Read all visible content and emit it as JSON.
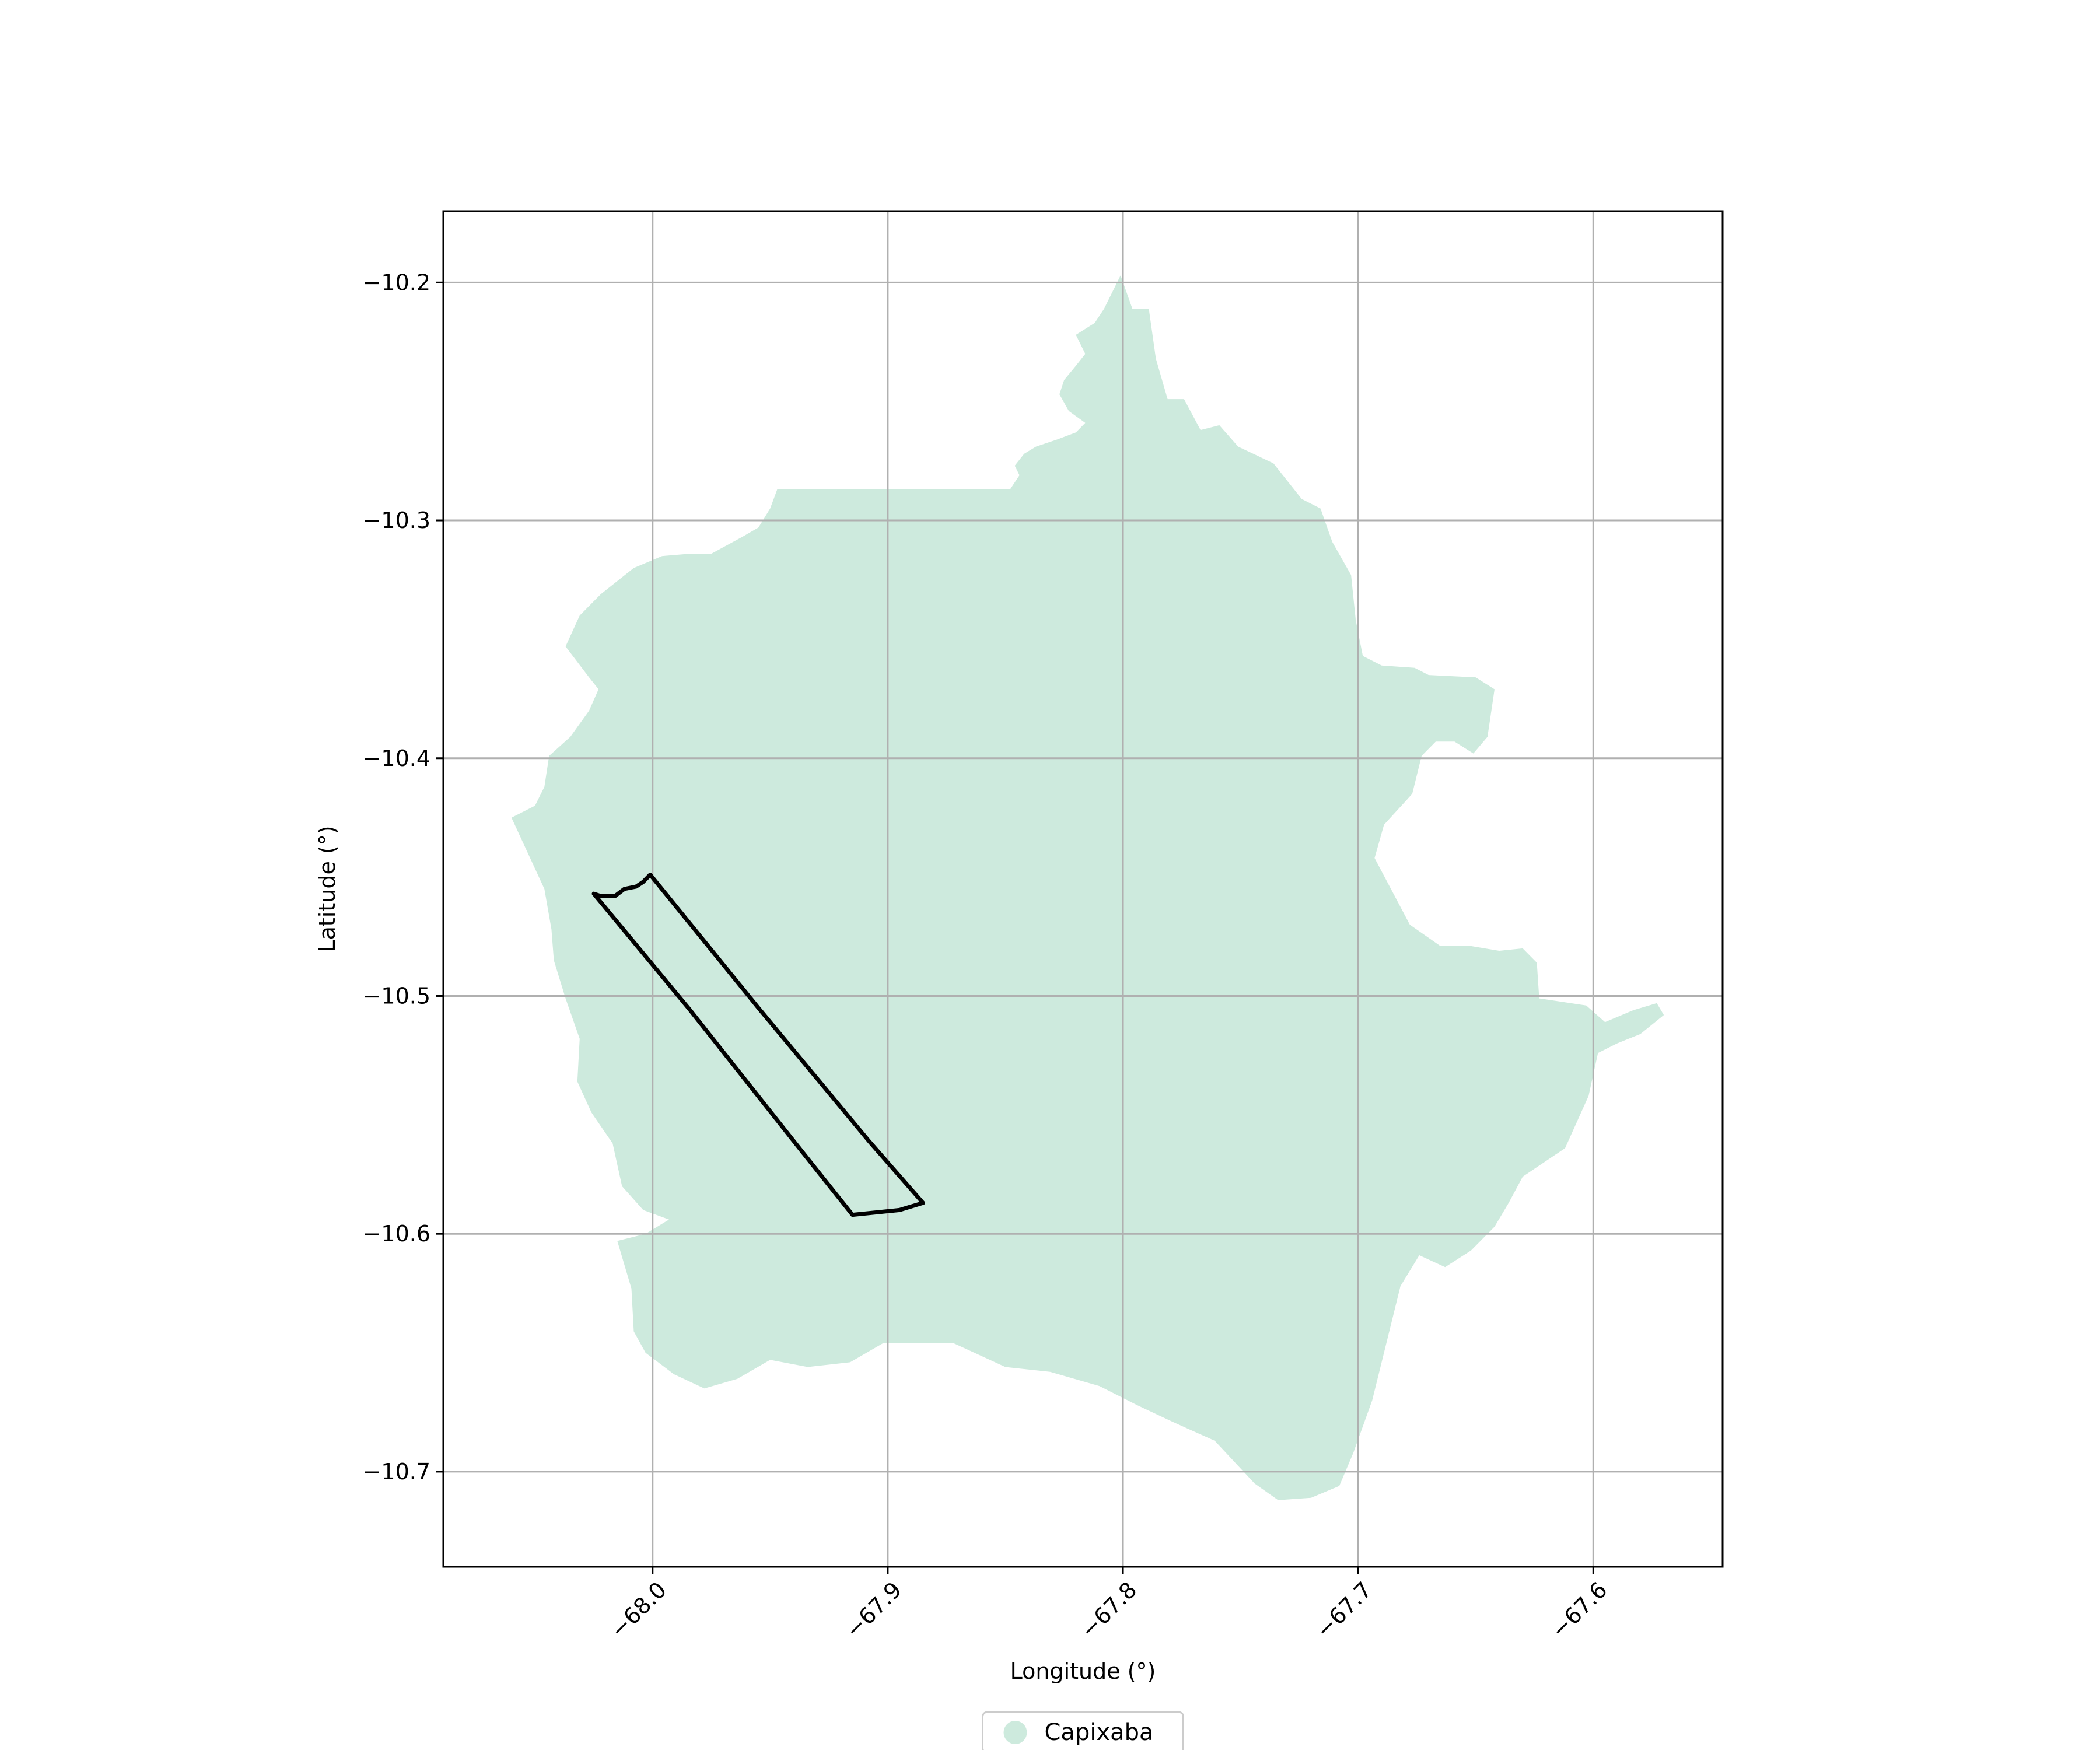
{
  "chart_data": {
    "type": "map",
    "xlabel": "Longitude (°)",
    "ylabel": "Latitude (°)",
    "xlim": [
      -68.089,
      -67.545
    ],
    "ylim": [
      -10.74,
      -10.17
    ],
    "xticks": [
      -68.0,
      -67.9,
      -67.8,
      -67.7,
      -67.6
    ],
    "xtick_labels": [
      "−68.0",
      "−67.9",
      "−67.8",
      "−67.7",
      "−67.6"
    ],
    "yticks": [
      -10.2,
      -10.3,
      -10.4,
      -10.5,
      -10.6,
      -10.7
    ],
    "ytick_labels": [
      "−10.2",
      "−10.3",
      "−10.4",
      "−10.5",
      "−10.6",
      "−10.7"
    ],
    "grid": true,
    "legend": {
      "placement": "bottom-center",
      "entries": [
        {
          "label": "Capixaba",
          "color": "#cdeadd"
        }
      ]
    },
    "region": {
      "name": "Capixaba",
      "color": "#cdeadd",
      "outline": [
        [
          -67.801,
          -10.197
        ],
        [
          -67.796,
          -10.211
        ],
        [
          -67.789,
          -10.211
        ],
        [
          -67.786,
          -10.232
        ],
        [
          -67.781,
          -10.249
        ],
        [
          -67.774,
          -10.249
        ],
        [
          -67.767,
          -10.262
        ],
        [
          -67.759,
          -10.26
        ],
        [
          -67.751,
          -10.269
        ],
        [
          -67.736,
          -10.276
        ],
        [
          -67.724,
          -10.291
        ],
        [
          -67.716,
          -10.295
        ],
        [
          -67.711,
          -10.309
        ],
        [
          -67.703,
          -10.323
        ],
        [
          -67.701,
          -10.342
        ],
        [
          -67.698,
          -10.357
        ],
        [
          -67.69,
          -10.361
        ],
        [
          -67.676,
          -10.362
        ],
        [
          -67.67,
          -10.365
        ],
        [
          -67.65,
          -10.366
        ],
        [
          -67.642,
          -10.371
        ],
        [
          -67.645,
          -10.391
        ],
        [
          -67.651,
          -10.398
        ],
        [
          -67.659,
          -10.393
        ],
        [
          -67.667,
          -10.393
        ],
        [
          -67.673,
          -10.399
        ],
        [
          -67.677,
          -10.415
        ],
        [
          -67.689,
          -10.428
        ],
        [
          -67.693,
          -10.442
        ],
        [
          -67.678,
          -10.47
        ],
        [
          -67.665,
          -10.479
        ],
        [
          -67.652,
          -10.479
        ],
        [
          -67.64,
          -10.481
        ],
        [
          -67.63,
          -10.48
        ],
        [
          -67.624,
          -10.486
        ],
        [
          -67.623,
          -10.501
        ],
        [
          -67.603,
          -10.504
        ],
        [
          -67.595,
          -10.511
        ],
        [
          -67.583,
          -10.506
        ],
        [
          -67.573,
          -10.503
        ],
        [
          -67.57,
          -10.508
        ],
        [
          -67.58,
          -10.516
        ],
        [
          -67.59,
          -10.52
        ],
        [
          -67.598,
          -10.524
        ],
        [
          -67.602,
          -10.542
        ],
        [
          -67.612,
          -10.564
        ],
        [
          -67.63,
          -10.576
        ],
        [
          -67.636,
          -10.587
        ],
        [
          -67.642,
          -10.597
        ],
        [
          -67.652,
          -10.607
        ],
        [
          -67.663,
          -10.614
        ],
        [
          -67.674,
          -10.609
        ],
        [
          -67.682,
          -10.622
        ],
        [
          -67.687,
          -10.642
        ],
        [
          -67.694,
          -10.67
        ],
        [
          -67.702,
          -10.692
        ],
        [
          -67.708,
          -10.706
        ],
        [
          -67.72,
          -10.711
        ],
        [
          -67.734,
          -10.712
        ],
        [
          -67.744,
          -10.705
        ],
        [
          -67.761,
          -10.687
        ],
        [
          -67.779,
          -10.679
        ],
        [
          -67.794,
          -10.672
        ],
        [
          -67.81,
          -10.664
        ],
        [
          -67.831,
          -10.658
        ],
        [
          -67.85,
          -10.656
        ],
        [
          -67.872,
          -10.646
        ],
        [
          -67.888,
          -10.646
        ],
        [
          -67.902,
          -10.646
        ],
        [
          -67.916,
          -10.654
        ],
        [
          -67.934,
          -10.656
        ],
        [
          -67.95,
          -10.653
        ],
        [
          -67.964,
          -10.661
        ],
        [
          -67.978,
          -10.665
        ],
        [
          -67.991,
          -10.659
        ],
        [
          -68.003,
          -10.65
        ],
        [
          -68.008,
          -10.641
        ],
        [
          -68.009,
          -10.623
        ],
        [
          -68.015,
          -10.603
        ],
        [
          -68.003,
          -10.6
        ],
        [
          -67.993,
          -10.594
        ],
        [
          -68.004,
          -10.59
        ],
        [
          -68.013,
          -10.58
        ],
        [
          -68.017,
          -10.562
        ],
        [
          -68.026,
          -10.549
        ],
        [
          -68.032,
          -10.536
        ],
        [
          -68.031,
          -10.518
        ],
        [
          -68.037,
          -10.501
        ],
        [
          -68.042,
          -10.485
        ],
        [
          -68.043,
          -10.472
        ],
        [
          -68.046,
          -10.455
        ],
        [
          -68.06,
          -10.425
        ],
        [
          -68.05,
          -10.42
        ],
        [
          -68.046,
          -10.412
        ],
        [
          -68.044,
          -10.399
        ],
        [
          -68.035,
          -10.391
        ],
        [
          -68.027,
          -10.38
        ],
        [
          -68.023,
          -10.371
        ],
        [
          -68.027,
          -10.366
        ],
        [
          -68.037,
          -10.353
        ],
        [
          -68.031,
          -10.34
        ],
        [
          -68.022,
          -10.331
        ],
        [
          -68.008,
          -10.32
        ],
        [
          -67.996,
          -10.315
        ],
        [
          -67.984,
          -10.314
        ],
        [
          -67.975,
          -10.314
        ],
        [
          -67.962,
          -10.307
        ],
        [
          -67.955,
          -10.303
        ],
        [
          -67.95,
          -10.295
        ],
        [
          -67.947,
          -10.287
        ],
        [
          -67.913,
          -10.287
        ],
        [
          -67.87,
          -10.287
        ],
        [
          -67.848,
          -10.287
        ],
        [
          -67.844,
          -10.281
        ],
        [
          -67.846,
          -10.277
        ],
        [
          -67.842,
          -10.272
        ],
        [
          -67.837,
          -10.269
        ],
        [
          -67.828,
          -10.266
        ],
        [
          -67.82,
          -10.263
        ],
        [
          -67.816,
          -10.259
        ],
        [
          -67.823,
          -10.254
        ],
        [
          -67.827,
          -10.247
        ],
        [
          -67.825,
          -10.241
        ],
        [
          -67.82,
          -10.235
        ],
        [
          -67.816,
          -10.23
        ],
        [
          -67.82,
          -10.222
        ],
        [
          -67.812,
          -10.217
        ],
        [
          -67.808,
          -10.211
        ]
      ]
    },
    "outlined_area": {
      "outline": [
        [
          -68.001,
          -10.449
        ],
        [
          -67.955,
          -10.505
        ],
        [
          -67.908,
          -10.561
        ],
        [
          -67.885,
          -10.587
        ],
        [
          -67.895,
          -10.59
        ],
        [
          -67.915,
          -10.592
        ],
        [
          -67.94,
          -10.561
        ],
        [
          -67.984,
          -10.506
        ],
        [
          -68.025,
          -10.457
        ],
        [
          -68.022,
          -10.458
        ],
        [
          -68.016,
          -10.458
        ],
        [
          -68.012,
          -10.455
        ],
        [
          -68.007,
          -10.454
        ],
        [
          -68.004,
          -10.452
        ]
      ]
    }
  }
}
